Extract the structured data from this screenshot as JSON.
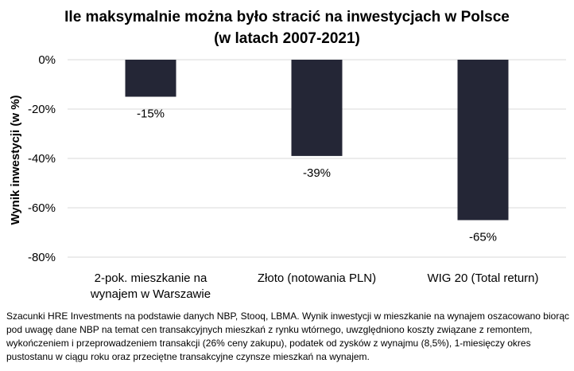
{
  "chart_data": {
    "type": "bar",
    "title": "Ile maksymalnie można było stracić na inwestycjach w Polsce",
    "subtitle": "(w latach 2007-2021)",
    "ylabel": "Wynik inwestycji (w %)",
    "xlabel": "",
    "categories": [
      [
        "2-pok. mieszkanie na",
        "wynajem w Warszawie"
      ],
      [
        "Złoto (notowania PLN)"
      ],
      [
        "WIG 20 (Total return)"
      ]
    ],
    "values": [
      -15,
      -39,
      -65
    ],
    "value_labels": [
      "-15%",
      "-39%",
      "-65%"
    ],
    "ylim": [
      -80,
      0
    ],
    "yticks": [
      0,
      -20,
      -40,
      -60,
      -80
    ],
    "ytick_labels": [
      "0%",
      "-20%",
      "-40%",
      "-60%",
      "-80%"
    ],
    "grid": true,
    "legend": false,
    "bar_color": "#242636",
    "grid_color": "#d9d9d9"
  },
  "footnote": "Szacunki HRE Investments na podstawie danych NBP, Stooq, LBMA. Wynik inwestycji w mieszkanie na wynajem oszacowano biorąc pod uwagę dane NBP na temat cen transakcyjnych mieszkań z rynku wtórnego, uwzględniono koszty związane z remontem, wykończeniem i przeprowadzeniem transakcji (26% ceny zakupu), podatek od zysków z wynajmu (8,5%), 1-miesięczy okres pustostanu w ciągu roku oraz przeciętne transakcyjne czynsze mieszkań na wynajem."
}
